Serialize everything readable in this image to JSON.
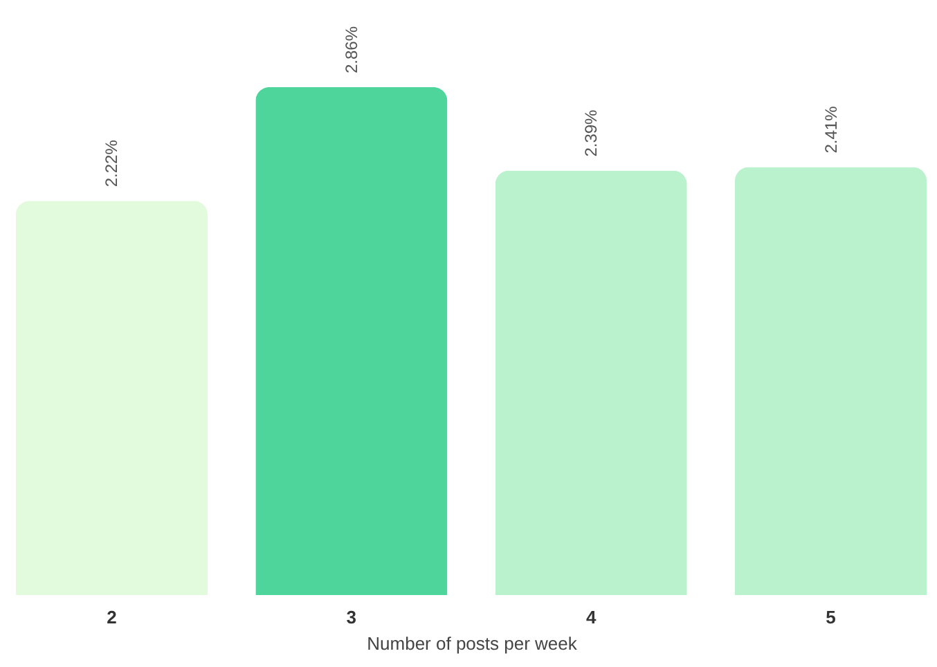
{
  "chart_data": {
    "type": "bar",
    "xlabel": "Number of posts per week",
    "categories": [
      "2",
      "3",
      "4",
      "5"
    ],
    "values": [
      2.22,
      2.86,
      2.39,
      2.41
    ],
    "colors": [
      "#e2fbdc",
      "#4dd59b",
      "#baf2cd",
      "#baf2cd"
    ],
    "value_labels": [
      "2.22%",
      "2.86%",
      "2.39%",
      "2.41%"
    ]
  }
}
